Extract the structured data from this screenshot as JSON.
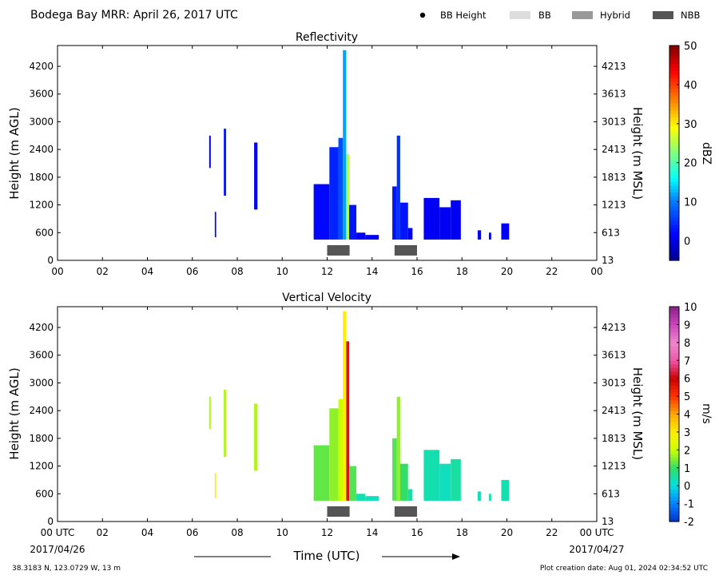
{
  "header": {
    "title": "Bodega Bay MRR:  April 26, 2017 UTC",
    "legend": [
      {
        "label": "BB Height",
        "marker": "dot",
        "color": "#000000"
      },
      {
        "label": "BB",
        "marker": "box",
        "color": "#dddddd"
      },
      {
        "label": "Hybrid",
        "marker": "box",
        "color": "#999999"
      },
      {
        "label": "NBB",
        "marker": "box",
        "color": "#555555"
      }
    ]
  },
  "footer": {
    "location": "38.3183 N, 123.0729 W, 13 m",
    "created": "Plot creation date: Aug 01, 2024 02:34:52 UTC",
    "start_date": "2017/04/26",
    "end_date": "2017/04/27",
    "time_label": "Time (UTC)"
  },
  "chart_data": [
    {
      "type": "heatmap",
      "title": "Reflectivity",
      "xlabel": "",
      "ylabel": "Height (m AGL)",
      "y2label": "Height (m MSL)",
      "xlim": [
        0,
        24
      ],
      "ylim": [
        0,
        4650
      ],
      "x_ticks": [
        "00",
        "02",
        "04",
        "06",
        "08",
        "10",
        "12",
        "14",
        "16",
        "18",
        "20",
        "22",
        "00"
      ],
      "y_ticks": [
        "0",
        "600",
        "1200",
        "1800",
        "2400",
        "3000",
        "3600",
        "4200"
      ],
      "y2_ticks": [
        "13",
        "613",
        "1213",
        "1813",
        "2413",
        "3013",
        "3613",
        "4213"
      ],
      "colorbar": {
        "label": "dBZ",
        "min": -5,
        "max": 50,
        "ticks": [
          "0",
          "10",
          "20",
          "30",
          "40",
          "50"
        ]
      },
      "nbb_bars": [
        [
          12.0,
          13.0
        ],
        [
          15.0,
          16.0
        ]
      ],
      "columns": [
        {
          "x": [
            6.75,
            6.82
          ],
          "y": [
            2000,
            2700
          ],
          "value": 1
        },
        {
          "x": [
            7.0,
            7.06
          ],
          "y": [
            500,
            1050
          ],
          "value": 1
        },
        {
          "x": [
            7.4,
            7.5
          ],
          "y": [
            1400,
            2850
          ],
          "value": 3
        },
        {
          "x": [
            8.75,
            8.9
          ],
          "y": [
            1100,
            2550
          ],
          "value": 1
        },
        {
          "x": [
            11.4,
            12.1
          ],
          "y": [
            450,
            1650
          ],
          "value": 2
        },
        {
          "x": [
            12.1,
            12.5
          ],
          "y": [
            450,
            2450
          ],
          "value": 4
        },
        {
          "x": [
            12.5,
            12.7
          ],
          "y": [
            450,
            2650
          ],
          "value": 7
        },
        {
          "x": [
            12.7,
            12.85
          ],
          "y": [
            450,
            4550
          ],
          "value": 12
        },
        {
          "x": [
            12.85,
            12.98
          ],
          "y": [
            450,
            2300
          ],
          "value": 25
        },
        {
          "x": [
            12.98,
            13.3
          ],
          "y": [
            450,
            1200
          ],
          "value": 3
        },
        {
          "x": [
            13.3,
            13.7
          ],
          "y": [
            450,
            600
          ],
          "value": 1
        },
        {
          "x": [
            13.7,
            14.3
          ],
          "y": [
            450,
            550
          ],
          "value": 1
        },
        {
          "x": [
            14.9,
            15.1
          ],
          "y": [
            450,
            1600
          ],
          "value": 3
        },
        {
          "x": [
            15.1,
            15.25
          ],
          "y": [
            450,
            2700
          ],
          "value": 5
        },
        {
          "x": [
            15.25,
            15.6
          ],
          "y": [
            450,
            1250
          ],
          "value": 3
        },
        {
          "x": [
            15.6,
            15.8
          ],
          "y": [
            450,
            700
          ],
          "value": 1
        },
        {
          "x": [
            16.3,
            17.0
          ],
          "y": [
            450,
            1350
          ],
          "value": 1
        },
        {
          "x": [
            17.0,
            17.5
          ],
          "y": [
            450,
            1150
          ],
          "value": 1
        },
        {
          "x": [
            17.5,
            17.95
          ],
          "y": [
            450,
            1300
          ],
          "value": 1
        },
        {
          "x": [
            18.7,
            18.85
          ],
          "y": [
            450,
            650
          ],
          "value": 1
        },
        {
          "x": [
            19.2,
            19.3
          ],
          "y": [
            450,
            600
          ],
          "value": 1
        },
        {
          "x": [
            19.75,
            20.1
          ],
          "y": [
            450,
            800
          ],
          "value": 1
        }
      ]
    },
    {
      "type": "heatmap",
      "title": "Vertical Velocity",
      "xlabel": "Time (UTC)",
      "ylabel": "Height (m AGL)",
      "y2label": "Height (m MSL)",
      "xlim": [
        0,
        24
      ],
      "ylim": [
        0,
        4650
      ],
      "x_ticks": [
        "00 UTC",
        "02",
        "04",
        "06",
        "08",
        "10",
        "12",
        "14",
        "16",
        "18",
        "20",
        "22",
        "00 UTC"
      ],
      "y_ticks": [
        "0",
        "600",
        "1200",
        "1800",
        "2400",
        "3000",
        "3600",
        "4200"
      ],
      "y2_ticks": [
        "13",
        "613",
        "1213",
        "1813",
        "2413",
        "3013",
        "3613",
        "4213"
      ],
      "colorbar": {
        "label": "m/s",
        "min": -2,
        "max": 10,
        "ticks": [
          "-2",
          "-1",
          "0",
          "1",
          "2",
          "3",
          "4",
          "5",
          "6",
          "7",
          "8",
          "9",
          "10"
        ]
      },
      "nbb_bars": [
        [
          12.0,
          13.0
        ],
        [
          15.0,
          16.0
        ]
      ],
      "columns": [
        {
          "x": [
            6.75,
            6.82
          ],
          "y": [
            2000,
            2700
          ],
          "value": 1.8
        },
        {
          "x": [
            7.0,
            7.06
          ],
          "y": [
            500,
            1050
          ],
          "value": 2.8
        },
        {
          "x": [
            7.4,
            7.5
          ],
          "y": [
            1400,
            2850
          ],
          "value": 1.8
        },
        {
          "x": [
            8.75,
            8.9
          ],
          "y": [
            1100,
            2550
          ],
          "value": 1.8
        },
        {
          "x": [
            11.4,
            12.1
          ],
          "y": [
            450,
            1650
          ],
          "value": 1.3
        },
        {
          "x": [
            12.1,
            12.5
          ],
          "y": [
            450,
            2450
          ],
          "value": 1.6
        },
        {
          "x": [
            12.5,
            12.7
          ],
          "y": [
            450,
            2650
          ],
          "value": 2.0
        },
        {
          "x": [
            12.7,
            12.85
          ],
          "y": [
            450,
            4550
          ],
          "value": 3.0
        },
        {
          "x": [
            12.85,
            12.98
          ],
          "y": [
            450,
            3900
          ],
          "value": 6.2
        },
        {
          "x": [
            12.98,
            13.3
          ],
          "y": [
            450,
            1200
          ],
          "value": 1.2
        },
        {
          "x": [
            13.3,
            13.7
          ],
          "y": [
            450,
            600
          ],
          "value": 0.4
        },
        {
          "x": [
            13.7,
            14.3
          ],
          "y": [
            450,
            550
          ],
          "value": 0.3
        },
        {
          "x": [
            14.9,
            15.1
          ],
          "y": [
            450,
            1800
          ],
          "value": 1.2
        },
        {
          "x": [
            15.1,
            15.25
          ],
          "y": [
            450,
            2700
          ],
          "value": 1.6
        },
        {
          "x": [
            15.25,
            15.6
          ],
          "y": [
            450,
            1250
          ],
          "value": 1.0
        },
        {
          "x": [
            15.6,
            15.8
          ],
          "y": [
            450,
            700
          ],
          "value": 0.4
        },
        {
          "x": [
            16.3,
            17.0
          ],
          "y": [
            450,
            1550
          ],
          "value": 0.4
        },
        {
          "x": [
            17.0,
            17.5
          ],
          "y": [
            450,
            1250
          ],
          "value": 0.3
        },
        {
          "x": [
            17.5,
            17.95
          ],
          "y": [
            450,
            1350
          ],
          "value": 0.5
        },
        {
          "x": [
            18.7,
            18.85
          ],
          "y": [
            450,
            650
          ],
          "value": 0.3
        },
        {
          "x": [
            19.2,
            19.3
          ],
          "y": [
            450,
            600
          ],
          "value": 0.4
        },
        {
          "x": [
            19.75,
            20.1
          ],
          "y": [
            450,
            900
          ],
          "value": 0.4
        }
      ]
    }
  ]
}
